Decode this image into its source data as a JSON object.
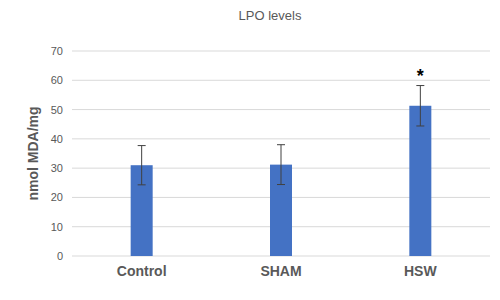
{
  "chart_data": {
    "type": "bar",
    "title": "LPO levels",
    "y_label": "nmol MDA/mg",
    "categories": [
      "Control",
      "SHAM",
      "HSW"
    ],
    "values": [
      31,
      31.2,
      51.3
    ],
    "errors": [
      6.7,
      6.8,
      6.9
    ],
    "color": "#4472c4",
    "ylim": [
      0,
      70
    ],
    "yticks": [
      0,
      10,
      20,
      30,
      40,
      50,
      60,
      70
    ],
    "grid": true,
    "annotations": [
      {
        "text": "*",
        "category": "HSW"
      }
    ]
  }
}
